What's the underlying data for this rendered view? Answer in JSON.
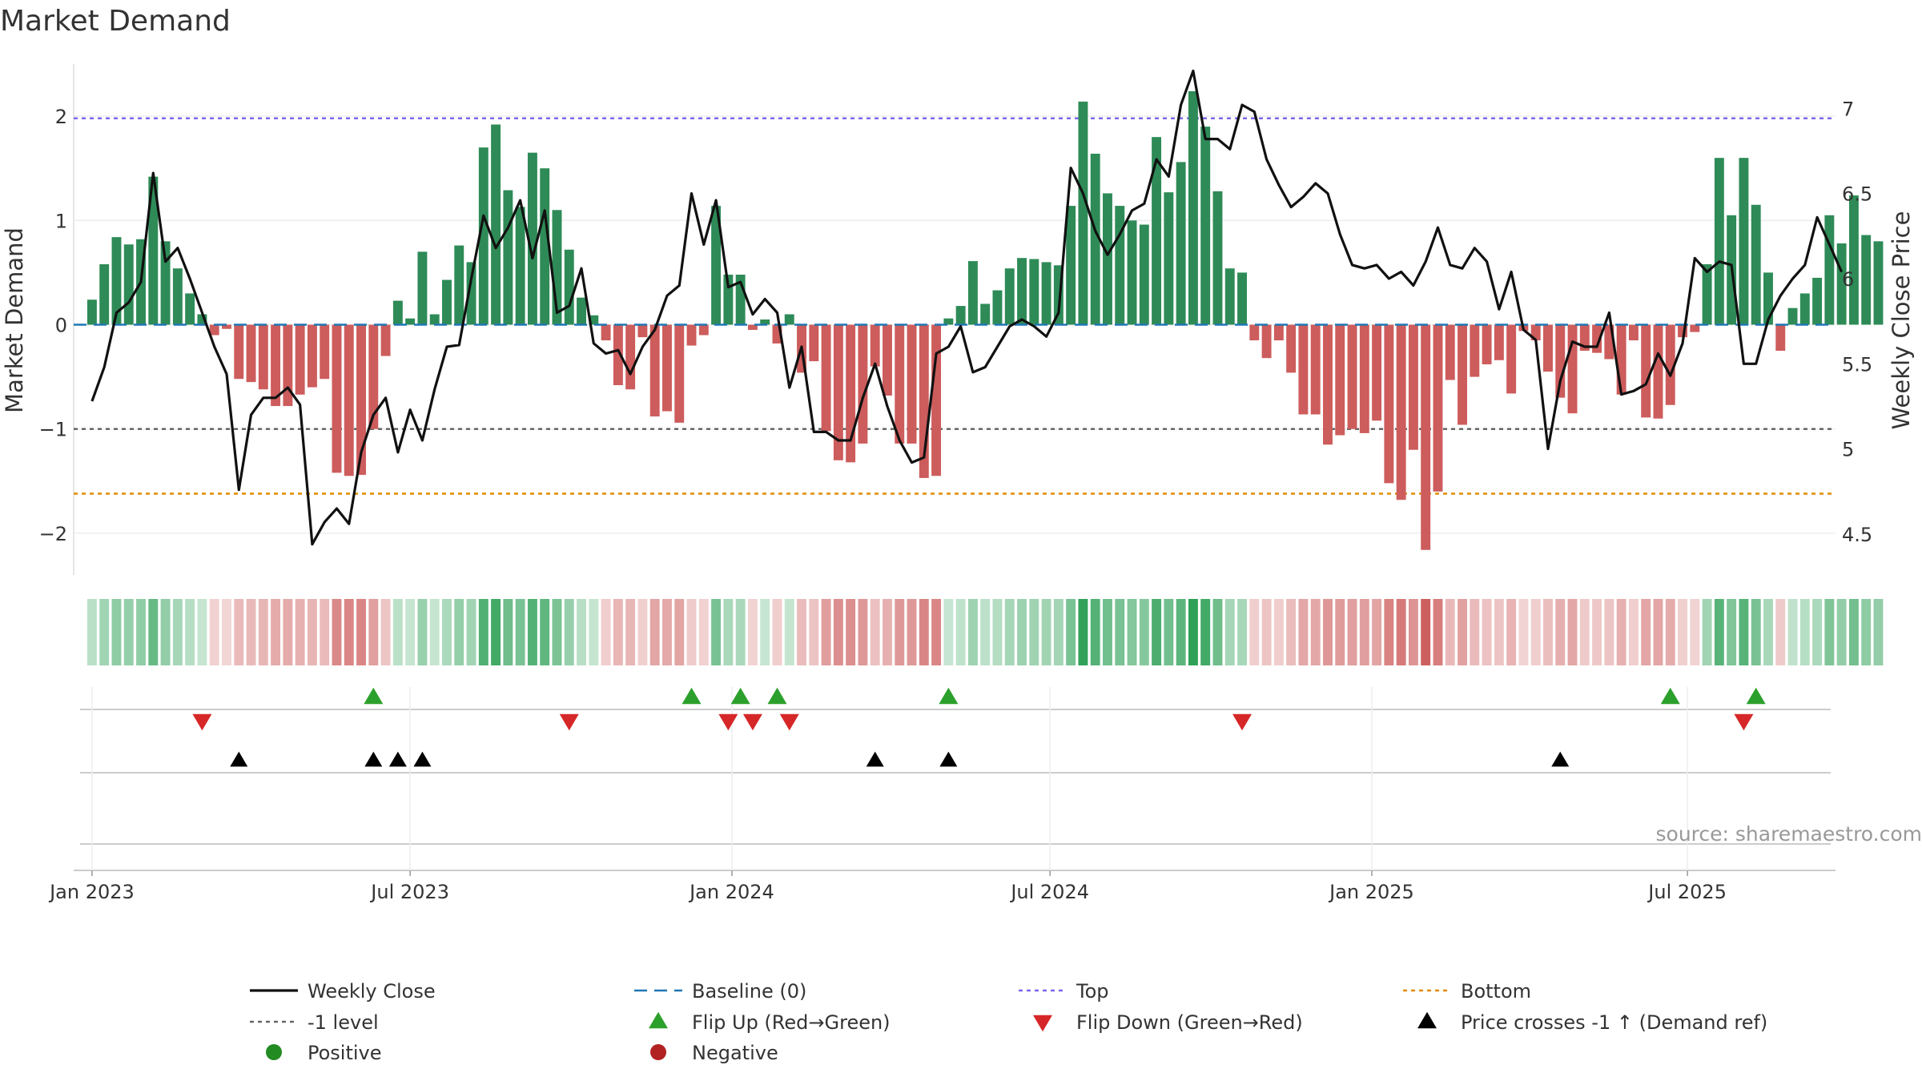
{
  "chart_data": {
    "type": "bar",
    "title": "Market Demand",
    "ylabel_left": "Market Demand",
    "ylabel_right": "Weekly Close Price",
    "source_note": "source: sharemaestro.com",
    "left_ylim": [
      -2.4,
      2.5
    ],
    "right_ylim": [
      4.26,
      7.26
    ],
    "left_ticks": [
      {
        "v": 2,
        "label": "2"
      },
      {
        "v": 1,
        "label": "1"
      },
      {
        "v": 0,
        "label": "0"
      },
      {
        "v": -1,
        "label": "−1"
      },
      {
        "v": -2,
        "label": "−2"
      }
    ],
    "right_ticks": [
      {
        "v": 7,
        "label": "7"
      },
      {
        "v": 6.5,
        "label": "6.5"
      },
      {
        "v": 6,
        "label": "6"
      },
      {
        "v": 5.5,
        "label": "5.5"
      },
      {
        "v": 5,
        "label": "5"
      },
      {
        "v": 4.5,
        "label": "4.5"
      }
    ],
    "x_range": [
      -1.5,
      142.5
    ],
    "x_ticks": [
      {
        "idx": 0,
        "label": "Jan 2023"
      },
      {
        "idx": 26,
        "label": "Jul 2023"
      },
      {
        "idx": 52.3,
        "label": "Jan 2024"
      },
      {
        "idx": 78.3,
        "label": "Jul 2024"
      },
      {
        "idx": 104.6,
        "label": "Jan 2025"
      },
      {
        "idx": 130.4,
        "label": "Jul 2025"
      }
    ],
    "reference_lines": {
      "top": 1.98,
      "bottom": -1.62,
      "minus_one": -1,
      "baseline": 0
    },
    "demand": [
      0.24,
      0.58,
      0.84,
      0.77,
      0.82,
      1.42,
      0.8,
      0.54,
      0.3,
      0.1,
      -0.1,
      -0.04,
      -0.52,
      -0.55,
      -0.62,
      -0.78,
      -0.78,
      -0.67,
      -0.6,
      -0.52,
      -1.42,
      -1.45,
      -1.44,
      -1.0,
      -0.3,
      0.23,
      0.06,
      0.7,
      0.1,
      0.43,
      0.76,
      0.6,
      1.7,
      1.92,
      1.29,
      1.13,
      1.65,
      1.5,
      1.1,
      0.72,
      0.26,
      0.09,
      -0.15,
      -0.58,
      -0.62,
      -0.12,
      -0.88,
      -0.83,
      -0.94,
      -0.2,
      -0.1,
      1.14,
      0.48,
      0.48,
      -0.05,
      0.05,
      -0.18,
      0.1,
      -0.46,
      -0.35,
      -1.02,
      -1.3,
      -1.32,
      -1.14,
      -0.4,
      -0.68,
      -1.14,
      -1.14,
      -1.47,
      -1.45,
      0.06,
      0.18,
      0.61,
      0.2,
      0.33,
      0.54,
      0.64,
      0.63,
      0.6,
      0.57,
      1.14,
      2.14,
      1.64,
      1.26,
      1.14,
      1.0,
      0.96,
      1.8,
      1.27,
      1.56,
      2.24,
      1.9,
      1.28,
      0.54,
      0.5,
      -0.15,
      -0.32,
      -0.15,
      -0.46,
      -0.86,
      -0.86,
      -1.15,
      -1.06,
      -1.0,
      -1.04,
      -0.92,
      -1.52,
      -1.68,
      -1.2,
      -2.16,
      -1.6,
      -0.53,
      -0.96,
      -0.5,
      -0.38,
      -0.34,
      -0.66,
      -0.06,
      -0.15,
      -0.45,
      -0.7,
      -0.85,
      -0.25,
      -0.27,
      -0.33,
      -0.67,
      -0.15,
      -0.89,
      -0.9,
      -0.77,
      -0.12,
      -0.07,
      0.58,
      1.6,
      1.05,
      1.6,
      1.15,
      0.5,
      -0.25,
      0.16,
      0.3,
      0.45,
      1.05,
      0.78,
      1.24,
      0.86,
      0.8
    ],
    "close": [
      5.28,
      5.48,
      5.8,
      5.86,
      5.98,
      6.62,
      6.1,
      6.18,
      6.0,
      5.8,
      5.6,
      5.44,
      4.76,
      5.2,
      5.3,
      5.3,
      5.36,
      5.26,
      4.44,
      4.57,
      4.65,
      4.56,
      4.98,
      5.2,
      5.3,
      4.98,
      5.23,
      5.05,
      5.35,
      5.6,
      5.61,
      6.0,
      6.37,
      6.18,
      6.3,
      6.46,
      6.12,
      6.4,
      5.8,
      5.84,
      6.06,
      5.62,
      5.56,
      5.58,
      5.44,
      5.6,
      5.7,
      5.9,
      5.96,
      6.5,
      6.2,
      6.46,
      5.95,
      5.98,
      5.79,
      5.88,
      5.8,
      5.36,
      5.6,
      5.1,
      5.1,
      5.05,
      5.05,
      5.3,
      5.5,
      5.25,
      5.05,
      4.92,
      4.95,
      5.56,
      5.6,
      5.72,
      5.45,
      5.48,
      5.6,
      5.72,
      5.76,
      5.72,
      5.66,
      5.8,
      6.65,
      6.5,
      6.28,
      6.14,
      6.26,
      6.4,
      6.44,
      6.7,
      6.6,
      7.02,
      7.22,
      6.82,
      6.82,
      6.76,
      7.02,
      6.98,
      6.7,
      6.55,
      6.42,
      6.48,
      6.56,
      6.5,
      6.26,
      6.08,
      6.06,
      6.08,
      6.0,
      6.04,
      5.96,
      6.1,
      6.3,
      6.08,
      6.06,
      6.18,
      6.1,
      5.82,
      6.04,
      5.7,
      5.64,
      5.0,
      5.4,
      5.63,
      5.6,
      5.6,
      5.8,
      5.32,
      5.34,
      5.38,
      5.56,
      5.43,
      5.62,
      6.12,
      6.04,
      6.1,
      6.08,
      5.5,
      5.5,
      5.76,
      5.9,
      6.0,
      6.08,
      6.36,
      6.2,
      6.04
    ],
    "flip_up_idx": [
      23,
      49,
      53,
      56,
      70,
      129,
      136
    ],
    "flip_down_idx": [
      9,
      39,
      52,
      54,
      57,
      94,
      135
    ],
    "price_cross_idx": [
      12,
      23,
      25,
      27,
      64,
      70,
      120
    ],
    "colors": {
      "positive_bar": "#2e8b57",
      "negative_bar": "#cd5c5c",
      "line": "#111111",
      "baseline": "#1f77b4",
      "top": "#7b68ee",
      "bottom": "#e08b00",
      "minus_one": "#666666",
      "flip_up": "#2ca02c",
      "flip_down": "#d62728",
      "price_cross": "#000000"
    },
    "legend": [
      {
        "label": "Weekly Close",
        "kind": "solid-line",
        "color": "#111111"
      },
      {
        "label": "Baseline (0)",
        "kind": "dash-line",
        "color": "#1f77b4"
      },
      {
        "label": "Top",
        "kind": "dot-line",
        "color": "#7b68ee"
      },
      {
        "label": "Bottom",
        "kind": "dot-line",
        "color": "#e08b00"
      },
      {
        "label": "-1 level",
        "kind": "dot-line",
        "color": "#666666"
      },
      {
        "label": "Flip Up (Red→Green)",
        "kind": "tri-up",
        "color": "#2ca02c"
      },
      {
        "label": "Flip Down (Green→Red)",
        "kind": "tri-down",
        "color": "#d62728"
      },
      {
        "label": "Price crosses -1 ↑ (Demand ref)",
        "kind": "tri-up",
        "color": "#000000"
      },
      {
        "label": "Positive",
        "kind": "dot",
        "color": "#228b22"
      },
      {
        "label": "Negative",
        "kind": "dot",
        "color": "#b22222"
      }
    ]
  }
}
